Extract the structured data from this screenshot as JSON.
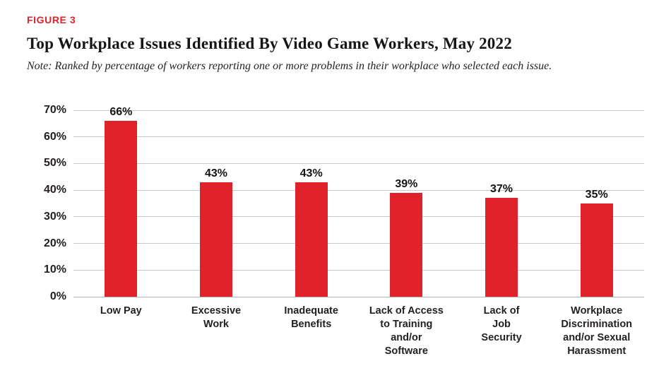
{
  "figure_label": "FIGURE 3",
  "title": "Top Workplace Issues Identified By Video Game Workers, May 2022",
  "note": "Note: Ranked by percentage of workers reporting one or more problems in their workplace who selected each issue.",
  "colors": {
    "bar": "#e0232b",
    "figure_label": "#e0232b",
    "gridline": "#c9c9c9",
    "axis_text": "#231f20"
  },
  "chart_data": {
    "type": "bar",
    "title": "Top Workplace Issues Identified By Video Game Workers, May 2022",
    "categories": [
      "Low Pay",
      "Excessive Work",
      "Inadequate Benefits",
      "Lack of Access to Training and/or Software",
      "Lack of Job Security",
      "Workplace Discrimination and/or Sexual Harassment"
    ],
    "category_display": [
      "Low Pay",
      "Excessive\nWork",
      "Inadequate\nBenefits",
      "Lack of Access\nto Training\nand/or\nSoftware",
      "Lack of\nJob\nSecurity",
      "Workplace\nDiscrimination\nand/or Sexual\nHarassment"
    ],
    "values": [
      66,
      43,
      43,
      39,
      37,
      35
    ],
    "value_labels": [
      "66%",
      "43%",
      "43%",
      "39%",
      "37%",
      "35%"
    ],
    "xlabel": "",
    "ylabel": "",
    "ylim": [
      0,
      70
    ],
    "ytick_step": 10,
    "ytick_labels": [
      "0%",
      "10%",
      "20%",
      "30%",
      "40%",
      "50%",
      "60%",
      "70%"
    ],
    "grid": true,
    "legend_position": "none",
    "bar_color": "#e0232b"
  }
}
